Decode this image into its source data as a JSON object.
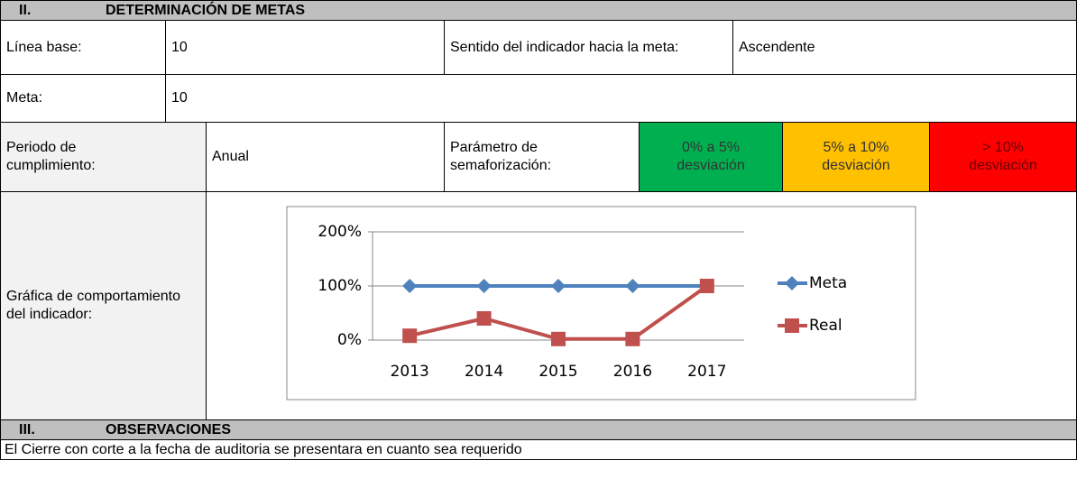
{
  "sections": [
    {
      "number": "II.",
      "title": "DETERMINACIÓN DE METAS"
    },
    {
      "number": "III.",
      "title": "OBSERVACIONES"
    }
  ],
  "linea_base": {
    "label": "Línea base:",
    "value": "10"
  },
  "sentido": {
    "label": "Sentido del indicador hacia la meta:",
    "value": "Ascendente"
  },
  "meta": {
    "label": "Meta:",
    "value": "10"
  },
  "periodo": {
    "label": "Periodo de cumplimiento:",
    "value": "Anual"
  },
  "parametro": {
    "label": "Parámetro de semaforización:",
    "ranges": [
      {
        "text": "0% a 5% desviación",
        "color": "#00b050"
      },
      {
        "text": "5% a 10% desviación",
        "color": "#ffc000"
      },
      {
        "text": "> 10% desviación",
        "color": "#ff0000"
      }
    ]
  },
  "grafica_label": "Gráfica de comportamiento del indicador:",
  "chart": {
    "type": "line",
    "categories": [
      "2013",
      "2014",
      "2015",
      "2016",
      "2017"
    ],
    "series": [
      {
        "name": "Meta",
        "color": "#4f81bd",
        "marker": "diamond",
        "values": [
          100,
          100,
          100,
          100,
          100
        ]
      },
      {
        "name": "Real",
        "color": "#c0504d",
        "marker": "square",
        "values": [
          8,
          40,
          2,
          2,
          100
        ]
      }
    ],
    "ylim": [
      0,
      200
    ],
    "yticks": [
      {
        "value": 0,
        "label": "0%"
      },
      {
        "value": 100,
        "label": "100%"
      },
      {
        "value": 200,
        "label": "200%"
      }
    ],
    "grid": true
  },
  "observaciones": "El Cierre con corte a la fecha de auditoria se presentara en cuanto sea requerido"
}
